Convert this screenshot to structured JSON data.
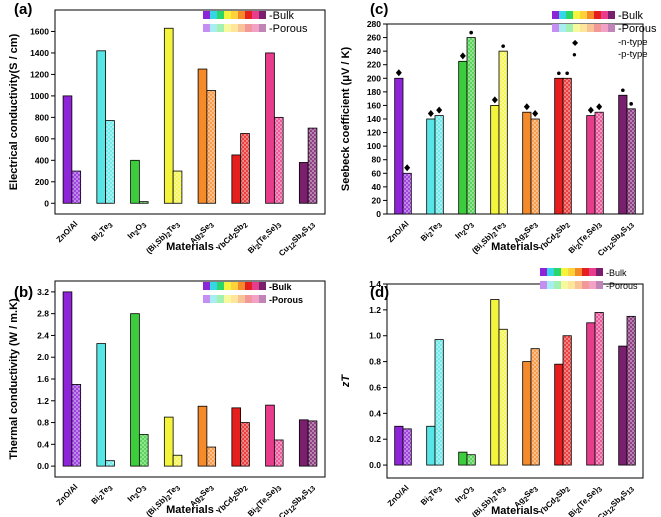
{
  "chart_data": [
    {
      "panel": "(a)",
      "type": "bar",
      "ylabel": "Electrical conductivity(S / cm)",
      "xlabel": "Materials",
      "ylim": [
        -100,
        1800
      ],
      "yticks": [
        0,
        200,
        400,
        600,
        800,
        1000,
        1200,
        1400,
        1600
      ],
      "categories": [
        "ZnO/Al",
        "Bi₂Te₃",
        "In₂O₃",
        "(Bi,Sb)₂Te₃",
        "Ag₂Se₃",
        "YbCd₂Sb₂",
        "Bi₂(Te,Se)₃",
        "Cu₁₂Sb₄S₁₃"
      ],
      "series": [
        {
          "name": "-Bulk",
          "values": [
            1000,
            1420,
            400,
            1630,
            1250,
            450,
            1400,
            380
          ]
        },
        {
          "name": "-Porous",
          "values": [
            300,
            770,
            15,
            300,
            1050,
            650,
            800,
            700
          ]
        }
      ],
      "legend": "top-right"
    },
    {
      "panel": "(b)",
      "type": "bar",
      "ylabel": "Thermal conductivity (W / m.K)",
      "xlabel": "Materials",
      "ylim": [
        -0.2,
        3.4
      ],
      "yticks": [
        "0.0",
        "0.4",
        "0.8",
        "1.2",
        "1.6",
        "2.0",
        "2.4",
        "2.8",
        "3.2"
      ],
      "categories": [
        "ZnO/Al",
        "Bi₂Te₃",
        "In₂O₃",
        "(Bi,Sb)₂Te₃",
        "Ag₂Se₃",
        "YbCd₂Sb₂",
        "Bi₂(Te,Se)₃",
        "Cu₁₂Sb₄S₁₃"
      ],
      "series": [
        {
          "name": "-Bulk",
          "values": [
            3.2,
            2.25,
            2.8,
            0.9,
            1.1,
            1.07,
            1.12,
            0.85
          ]
        },
        {
          "name": "-Porous",
          "values": [
            1.5,
            0.1,
            0.58,
            0.2,
            0.35,
            0.8,
            0.48,
            0.83
          ]
        }
      ],
      "legend": "top-right"
    },
    {
      "panel": "(c)",
      "type": "bar",
      "ylabel": "Seebeck coefficient (μV / K)",
      "xlabel": "Materials",
      "ylim": [
        0,
        280
      ],
      "yticks": [
        0,
        20,
        40,
        60,
        80,
        100,
        120,
        140,
        160,
        180,
        200,
        220,
        240,
        260,
        280
      ],
      "categories": [
        "ZnO/Al",
        "Bi₂Te₃",
        "In₂O₃",
        "(Bi,Sb)₂Te₃",
        "Ag₂Se₃",
        "YbCd₂Sb₂",
        "Bi₂(Te,Se)₃",
        "Cu₁₂Sb₄S₁₃"
      ],
      "series": [
        {
          "name": "-Bulk",
          "values": [
            200,
            140,
            225,
            160,
            150,
            200,
            145,
            175
          ]
        },
        {
          "name": "-Porous",
          "values": [
            60,
            145,
            260,
            240,
            140,
            200,
            150,
            155
          ]
        }
      ],
      "carrier_type": {
        "bulk": [
          "n",
          "n",
          "n",
          "n",
          "n",
          "p",
          "n",
          "p"
        ],
        "porous": [
          "n",
          "n",
          "p",
          "p",
          "n",
          "p",
          "n",
          "p"
        ]
      },
      "legend_markers": [
        {
          "symbol": "◆",
          "label": "-n-type"
        },
        {
          "symbol": "●",
          "label": "-p-type"
        }
      ],
      "legend": "top-right"
    },
    {
      "panel": "(d)",
      "type": "bar",
      "ylabel": "zT",
      "xlabel": "Materials",
      "ylim": [
        -0.1,
        1.4
      ],
      "yticks": [
        "0.0",
        "0.2",
        "0.4",
        "0.6",
        "0.8",
        "1.0",
        "1.2",
        "1.4"
      ],
      "categories": [
        "ZnO/Al",
        "Bi₂Te₃",
        "In₂O₃",
        "(Bi,Sb)₂Te₃",
        "Ag₂Se₃",
        "YbCd₂Sb₂",
        "Bi₂(Te,Se)₃",
        "Cu₁₂Sb₄S₁₃"
      ],
      "series": [
        {
          "name": "-Bulk",
          "values": [
            0.3,
            0.3,
            0.1,
            1.28,
            0.8,
            0.78,
            1.1,
            0.92
          ]
        },
        {
          "name": "-Porous",
          "values": [
            0.28,
            0.97,
            0.08,
            1.05,
            0.9,
            1.0,
            1.18,
            1.15
          ]
        }
      ],
      "legend": "top-right"
    }
  ],
  "colors": {
    "materials": [
      "#8e24d8",
      "#57e6e6",
      "#3ccd3c",
      "#f4f43c",
      "#f58a2a",
      "#e61e1e",
      "#e83c8c",
      "#7a1f6e"
    ],
    "bulk_legend": [
      "#8e24d8",
      "#35d6e6",
      "#2ad66a",
      "#f4f43c",
      "#ffd23c",
      "#f58a2a",
      "#e61e1e",
      "#e83c8c",
      "#7a1f6e"
    ],
    "porous_legend": [
      "#c58ef2",
      "#a6eef0",
      "#a2f0b2",
      "#f8f89c",
      "#fde59c",
      "#f9c398",
      "#f39898",
      "#f3a2c6",
      "#c085b6"
    ]
  }
}
